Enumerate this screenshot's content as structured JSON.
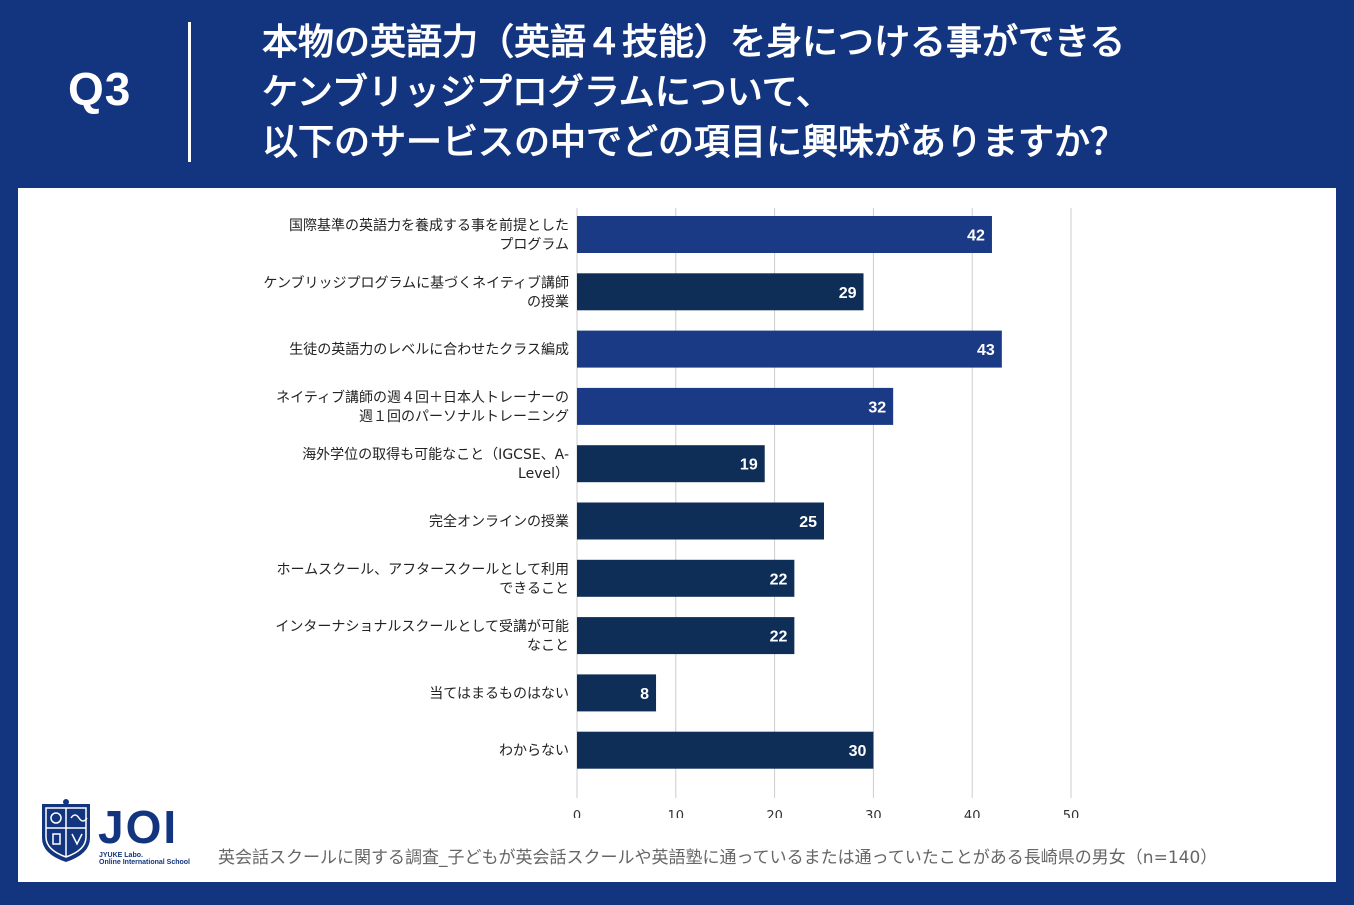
{
  "header": {
    "q_label": "Q3",
    "question_lines": [
      "本物の英語力（英語４技能）を身につける事ができる",
      "ケンブリッジプログラムについて、",
      "以下のサービスの中でどの項目に興味がありますか？"
    ]
  },
  "logo": {
    "name": "JOI",
    "sub1": "JYUKE Labo.",
    "sub2": "Online International School"
  },
  "footer": {
    "note": "英会話スクールに関する調査_子どもが英会話スクールや英語塾に通っているまたは通っていたことがある長崎県の男女（n=140）"
  },
  "colors": {
    "header_bg": "#13357f",
    "bar_primary": "#1b3a86",
    "bar_secondary": "#0e2d57",
    "grid": "#cccccc",
    "label_text": "#222222",
    "value_text": "#ffffff"
  },
  "chart_data": {
    "type": "bar",
    "orientation": "horizontal",
    "title": "",
    "xlabel": "",
    "ylabel": "",
    "xlim": [
      0,
      50
    ],
    "xticks": [
      0,
      10,
      20,
      30,
      40,
      50
    ],
    "grid": true,
    "categories": [
      [
        "国際基準の英語力を養成する事を前提とした",
        "プログラム"
      ],
      [
        "ケンブリッジプログラムに基づくネイティブ講師",
        "の授業"
      ],
      [
        "生徒の英語力のレベルに合わせたクラス編成"
      ],
      [
        "ネイティブ講師の週４回＋日本人トレーナーの",
        "週１回のパーソナルトレーニング"
      ],
      [
        "海外学位の取得も可能なこと（IGCSE、A-",
        "Level）"
      ],
      [
        "完全オンラインの授業"
      ],
      [
        "ホームスクール、アフタースクールとして利用",
        "できること"
      ],
      [
        "インターナショナルスクールとして受講が可能",
        "なこと"
      ],
      [
        "当てはまるものはない"
      ],
      [
        "わからない"
      ]
    ],
    "values": [
      42,
      29,
      43,
      32,
      19,
      25,
      22,
      22,
      8,
      30
    ],
    "bar_colors": [
      "#1b3a86",
      "#0e2d57",
      "#1b3a86",
      "#1b3a86",
      "#0e2d57",
      "#0e2d57",
      "#0e2d57",
      "#0e2d57",
      "#0e2d57",
      "#0e2d57"
    ]
  }
}
